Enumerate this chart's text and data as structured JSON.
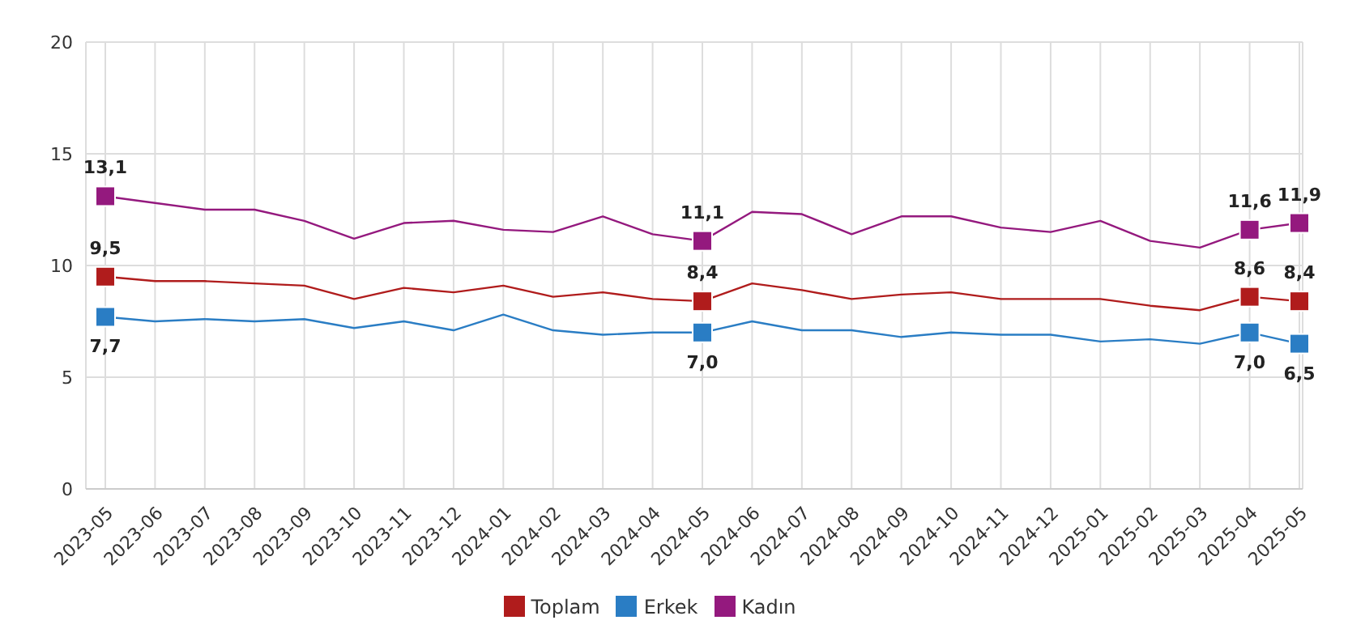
{
  "chart_data": {
    "type": "line",
    "categories": [
      "2023-05",
      "2023-06",
      "2023-07",
      "2023-08",
      "2023-09",
      "2023-10",
      "2023-11",
      "2023-12",
      "2024-01",
      "2024-02",
      "2024-03",
      "2024-04",
      "2024-05",
      "2024-06",
      "2024-07",
      "2024-08",
      "2024-09",
      "2024-10",
      "2024-11",
      "2024-12",
      "2025-01",
      "2025-02",
      "2025-03",
      "2025-04",
      "2025-05"
    ],
    "series": [
      {
        "name": "Toplam",
        "color": "#b01c1c",
        "values": [
          9.5,
          9.3,
          9.3,
          9.2,
          9.1,
          8.5,
          9.0,
          8.8,
          9.1,
          8.6,
          8.8,
          8.5,
          8.4,
          9.2,
          8.9,
          8.5,
          8.7,
          8.8,
          8.5,
          8.5,
          8.5,
          8.2,
          8.0,
          8.6,
          8.4
        ],
        "value_labels": [
          "9,5",
          null,
          null,
          null,
          null,
          null,
          null,
          null,
          null,
          null,
          null,
          null,
          "8,4",
          null,
          null,
          null,
          null,
          null,
          null,
          null,
          null,
          null,
          null,
          "8,6",
          "8,4"
        ]
      },
      {
        "name": "Erkek",
        "color": "#2a7dc4",
        "values": [
          7.7,
          7.5,
          7.6,
          7.5,
          7.6,
          7.2,
          7.5,
          7.1,
          7.8,
          7.1,
          6.9,
          7.0,
          7.0,
          7.5,
          7.1,
          7.1,
          6.8,
          7.0,
          6.9,
          6.9,
          6.6,
          6.7,
          6.5,
          7.0,
          6.5
        ],
        "value_labels": [
          "7,7",
          null,
          null,
          null,
          null,
          null,
          null,
          null,
          null,
          null,
          null,
          null,
          "7,0",
          null,
          null,
          null,
          null,
          null,
          null,
          null,
          null,
          null,
          null,
          "7,0",
          "6,5"
        ]
      },
      {
        "name": "Kadın",
        "color": "#94197e",
        "values": [
          13.1,
          12.8,
          12.5,
          12.5,
          12.0,
          11.2,
          11.9,
          12.0,
          11.6,
          11.5,
          12.2,
          11.4,
          11.1,
          12.4,
          12.3,
          11.4,
          12.2,
          12.2,
          11.7,
          11.5,
          12.0,
          11.1,
          10.8,
          11.6,
          11.9
        ],
        "value_labels": [
          "13,1",
          null,
          null,
          null,
          null,
          null,
          null,
          null,
          null,
          null,
          null,
          null,
          "11,1",
          null,
          null,
          null,
          null,
          null,
          null,
          null,
          null,
          null,
          null,
          "11,6",
          "11,9"
        ]
      }
    ],
    "ylim": [
      0,
      20
    ],
    "yticks": [
      0,
      5,
      10,
      15,
      20
    ],
    "grid": true,
    "legend": "bottom",
    "line_style": "solid"
  }
}
